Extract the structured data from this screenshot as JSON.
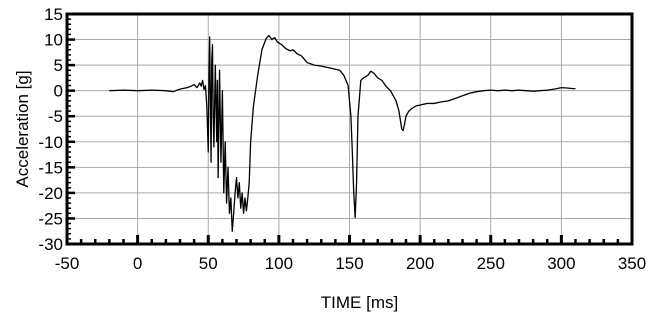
{
  "chart_data": {
    "type": "line",
    "title": "",
    "xlabel": "TIME [ms]",
    "ylabel": "Acceleration [g]",
    "xlim": [
      -50,
      350
    ],
    "ylim": [
      -30,
      15
    ],
    "grid": true,
    "legend": "none",
    "x_ticks": [
      "-50",
      "0",
      "50",
      "100",
      "150",
      "200",
      "250",
      "300",
      "350"
    ],
    "y_ticks": [
      "15",
      "10",
      "5",
      "0",
      "-5",
      "-10",
      "-15",
      "-20",
      "-25",
      "-30"
    ],
    "series": [
      {
        "color": "#000000",
        "points": [
          [
            -20,
            0
          ],
          [
            -10,
            0.1
          ],
          [
            0,
            0
          ],
          [
            10,
            0.1
          ],
          [
            20,
            0
          ],
          [
            25,
            -0.2
          ],
          [
            30,
            0.3
          ],
          [
            35,
            0.6
          ],
          [
            38,
            0.9
          ],
          [
            40,
            1.2
          ],
          [
            42,
            0.6
          ],
          [
            44,
            1.5
          ],
          [
            45,
            0.9
          ],
          [
            46,
            2
          ],
          [
            47,
            0.2
          ],
          [
            48,
            1
          ],
          [
            49,
            -3
          ],
          [
            50,
            -12
          ],
          [
            50.5,
            3
          ],
          [
            51,
            10.5
          ],
          [
            51.5,
            -2
          ],
          [
            52,
            -14
          ],
          [
            52.5,
            6
          ],
          [
            53,
            9
          ],
          [
            53.5,
            -5
          ],
          [
            54,
            -11
          ],
          [
            55,
            5
          ],
          [
            56,
            -10
          ],
          [
            56.5,
            2
          ],
          [
            57,
            -17
          ],
          [
            58,
            4
          ],
          [
            59,
            -14
          ],
          [
            60,
            0
          ],
          [
            61,
            -20
          ],
          [
            62,
            -10
          ],
          [
            63,
            -22
          ],
          [
            64,
            -15
          ],
          [
            65,
            -24
          ],
          [
            66,
            -21
          ],
          [
            67,
            -27.5
          ],
          [
            68,
            -24
          ],
          [
            69,
            -20
          ],
          [
            70,
            -17
          ],
          [
            71,
            -21
          ],
          [
            72,
            -18
          ],
          [
            73,
            -23
          ],
          [
            74,
            -20
          ],
          [
            75,
            -24
          ],
          [
            76,
            -21
          ],
          [
            77,
            -23.5
          ],
          [
            78,
            -21
          ],
          [
            79,
            -18
          ],
          [
            80,
            -10
          ],
          [
            82,
            -3
          ],
          [
            85,
            3
          ],
          [
            88,
            8
          ],
          [
            91,
            10.2
          ],
          [
            93,
            10.8
          ],
          [
            95,
            10
          ],
          [
            97,
            10.4
          ],
          [
            99,
            9.5
          ],
          [
            102,
            9
          ],
          [
            105,
            8.2
          ],
          [
            108,
            7.8
          ],
          [
            110,
            8
          ],
          [
            113,
            7.2
          ],
          [
            116,
            6.8
          ],
          [
            120,
            5.5
          ],
          [
            125,
            5
          ],
          [
            130,
            4.8
          ],
          [
            135,
            4.5
          ],
          [
            140,
            4.2
          ],
          [
            143,
            4
          ],
          [
            146,
            3
          ],
          [
            149,
            1
          ],
          [
            151,
            -5
          ],
          [
            152,
            -12
          ],
          [
            153,
            -20
          ],
          [
            154,
            -24.8
          ],
          [
            155,
            -18
          ],
          [
            156,
            -5
          ],
          [
            158,
            2
          ],
          [
            160,
            2.5
          ],
          [
            163,
            3
          ],
          [
            165,
            3.8
          ],
          [
            167,
            3.5
          ],
          [
            170,
            2.5
          ],
          [
            173,
            2
          ],
          [
            176,
            0.8
          ],
          [
            179,
            0
          ],
          [
            181,
            -1
          ],
          [
            183,
            -2
          ],
          [
            185,
            -4
          ],
          [
            187,
            -7.5
          ],
          [
            188,
            -7.8
          ],
          [
            189,
            -6.5
          ],
          [
            190,
            -5
          ],
          [
            192,
            -4
          ],
          [
            194,
            -3.5
          ],
          [
            197,
            -3
          ],
          [
            200,
            -2.8
          ],
          [
            205,
            -2.5
          ],
          [
            210,
            -2.5
          ],
          [
            215,
            -2.2
          ],
          [
            220,
            -2
          ],
          [
            225,
            -1.5
          ],
          [
            230,
            -1
          ],
          [
            235,
            -0.5
          ],
          [
            240,
            -0.2
          ],
          [
            245,
            0
          ],
          [
            250,
            0.1
          ],
          [
            255,
            0
          ],
          [
            260,
            0.1
          ],
          [
            265,
            0
          ],
          [
            270,
            0.1
          ],
          [
            275,
            0
          ],
          [
            280,
            -0.1
          ],
          [
            285,
            0
          ],
          [
            290,
            0.1
          ],
          [
            295,
            0.3
          ],
          [
            300,
            0.6
          ],
          [
            305,
            0.5
          ],
          [
            308,
            0.4
          ],
          [
            310,
            0.4
          ]
        ]
      }
    ]
  }
}
